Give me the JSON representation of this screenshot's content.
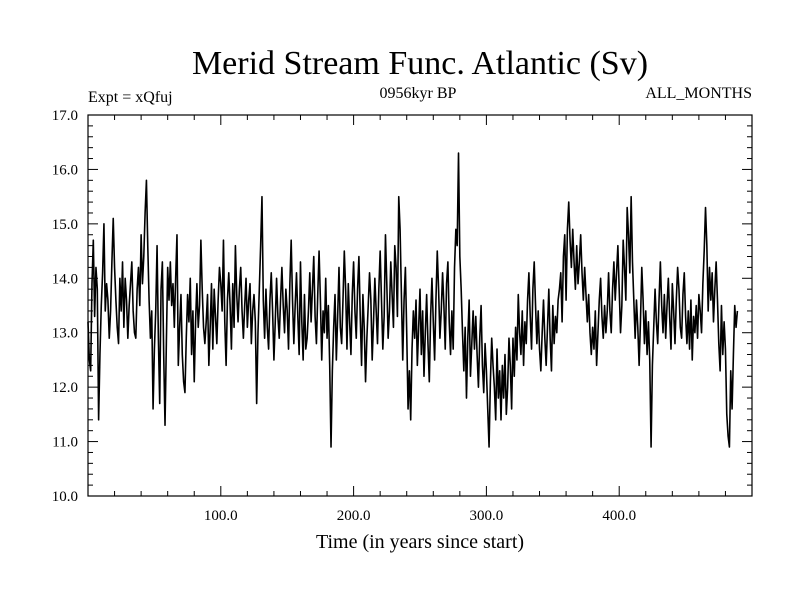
{
  "chart_data": {
    "type": "line",
    "title": "Merid Stream Func. Atlantic (Sv)",
    "subtitle_left": "Expt = xQfuj",
    "subtitle_center": "0956kyr BP",
    "subtitle_right": "ALL_MONTHS",
    "xlabel": "Time (in years since start)",
    "ylabel": "",
    "xlim": [
      0,
      500
    ],
    "ylim": [
      10.0,
      17.0
    ],
    "x_ticks": [
      100,
      200,
      300,
      400
    ],
    "x_tick_labels": [
      "100.0",
      "200.0",
      "300.0",
      "400.0"
    ],
    "y_ticks": [
      10,
      11,
      12,
      13,
      14,
      15,
      16,
      17
    ],
    "y_tick_labels": [
      "10.0",
      "11.0",
      "12.0",
      "13.0",
      "14.0",
      "15.0",
      "16.0",
      "17.0"
    ],
    "series": [
      {
        "name": "Merid Stream Func. Atlantic",
        "x_start": 0,
        "x_step": 1,
        "values": [
          13.2,
          12.5,
          12.3,
          13.9,
          14.7,
          13.3,
          14.2,
          13.8,
          11.4,
          12.6,
          13.5,
          14.1,
          15.0,
          13.4,
          13.9,
          13.6,
          12.9,
          13.4,
          14.3,
          15.1,
          14.2,
          13.6,
          13.1,
          12.8,
          14.0,
          13.4,
          14.3,
          13.1,
          14.0,
          13.6,
          12.9,
          13.5,
          13.9,
          14.3,
          13.4,
          13.0,
          12.9,
          13.8,
          14.2,
          13.5,
          14.8,
          13.9,
          14.4,
          15.2,
          15.8,
          14.6,
          13.6,
          12.9,
          13.4,
          11.6,
          12.7,
          13.4,
          14.6,
          12.9,
          11.7,
          13.8,
          14.3,
          12.6,
          11.3,
          12.8,
          14.2,
          13.6,
          14.3,
          13.5,
          13.9,
          13.1,
          14.0,
          14.8,
          12.4,
          13.1,
          13.7,
          12.6,
          12.1,
          11.9,
          12.9,
          13.7,
          13.2,
          14.0,
          12.6,
          13.4,
          12.1,
          13.2,
          13.9,
          13.1,
          13.5,
          14.7,
          13.8,
          13.1,
          12.8,
          13.2,
          13.7,
          12.4,
          13.1,
          13.9,
          12.7,
          13.8,
          13.3,
          12.8,
          13.6,
          14.2,
          13.9,
          13.4,
          14.7,
          13.2,
          12.4,
          13.6,
          14.1,
          13.5,
          12.7,
          13.9,
          13.1,
          14.6,
          13.7,
          13.2,
          13.8,
          14.2,
          13.4,
          12.9,
          13.5,
          14.0,
          13.1,
          13.6,
          13.9,
          12.8,
          13.4,
          13.7,
          13.2,
          11.7,
          13.0,
          13.8,
          14.6,
          15.5,
          13.6,
          12.9,
          13.8,
          13.1,
          12.7,
          13.6,
          14.1,
          13.4,
          12.5,
          13.2,
          14.0,
          13.3,
          12.9,
          13.6,
          14.2,
          13.5,
          13.0,
          13.8,
          13.4,
          12.7,
          13.9,
          14.7,
          13.6,
          12.8,
          13.5,
          14.1,
          13.3,
          12.6,
          14.3,
          13.2,
          12.5,
          13.7,
          12.7,
          12.9,
          13.4,
          14.1,
          13.2,
          13.8,
          14.4,
          13.3,
          12.8,
          13.7,
          14.5,
          13.6,
          12.5,
          13.4,
          13.0,
          14.0,
          12.9,
          13.5,
          12.4,
          10.9,
          12.3,
          13.1,
          13.7,
          12.5,
          13.3,
          14.2,
          13.1,
          12.8,
          13.6,
          14.5,
          13.8,
          12.7,
          13.9,
          13.2,
          12.6,
          13.7,
          14.3,
          13.4,
          12.9,
          13.8,
          14.4,
          13.3,
          12.4,
          13.7,
          13.1,
          12.1,
          12.9,
          13.5,
          14.1,
          13.6,
          12.5,
          13.2,
          14.0,
          13.4,
          12.8,
          13.8,
          14.5,
          13.6,
          12.7,
          13.3,
          14.8,
          13.9,
          12.9,
          13.4,
          14.3,
          13.7,
          13.1,
          14.6,
          14.2,
          13.3,
          15.5,
          14.9,
          13.7,
          12.5,
          13.6,
          14.2,
          13.0,
          11.6,
          12.3,
          11.4,
          12.7,
          13.4,
          12.9,
          13.6,
          12.4,
          13.1,
          13.8,
          12.6,
          13.4,
          12.2,
          13.0,
          13.7,
          12.8,
          12.1,
          13.3,
          14.0,
          13.2,
          12.5,
          13.6,
          14.5,
          13.8,
          12.9,
          13.4,
          14.1,
          13.5,
          12.7,
          13.9,
          14.3,
          13.2,
          12.6,
          13.4,
          12.7,
          14.2,
          14.9,
          14.6,
          16.3,
          14.4,
          13.8,
          13.0,
          12.3,
          13.1,
          11.8,
          12.9,
          13.6,
          12.2,
          12.8,
          13.4,
          12.7,
          13.3,
          12.6,
          12.0,
          12.9,
          13.5,
          12.4,
          11.9,
          12.8,
          12.3,
          11.6,
          10.9,
          12.1,
          12.9,
          12.4,
          12.0,
          11.4,
          12.7,
          11.8,
          12.3,
          11.4,
          12.4,
          11.8,
          12.6,
          11.5,
          12.0,
          12.9,
          12.4,
          11.6,
          12.9,
          12.2,
          13.1,
          12.5,
          13.7,
          13.0,
          12.6,
          13.4,
          12.4,
          13.2,
          12.8,
          13.6,
          14.1,
          13.3,
          12.7,
          13.8,
          14.3,
          13.5,
          12.8,
          13.4,
          12.7,
          12.3,
          13.0,
          13.6,
          12.9,
          12.4,
          13.1,
          13.8,
          12.9,
          12.3,
          13.5,
          12.8,
          13.3,
          13.0,
          13.6,
          13.8,
          14.1,
          13.2,
          14.4,
          14.8,
          13.6,
          14.9,
          15.4,
          14.7,
          14.2,
          14.9,
          14.3,
          13.8,
          14.6,
          13.9,
          14.3,
          14.8,
          14.1,
          13.6,
          14.2,
          13.7,
          13.2,
          13.7,
          13.0,
          12.6,
          13.1,
          12.7,
          13.4,
          12.4,
          13.0,
          13.6,
          14.0,
          13.3,
          12.9,
          13.5,
          13.0,
          13.4,
          14.1,
          13.4,
          13.0,
          13.8,
          14.3,
          13.6,
          14.1,
          14.6,
          13.8,
          13.0,
          13.5,
          14.7,
          14.2,
          13.6,
          15.3,
          14.8,
          14.1,
          15.5,
          14.3,
          13.6,
          12.9,
          13.6,
          13.1,
          12.4,
          13.2,
          14.2,
          13.6,
          12.8,
          13.4,
          12.6,
          13.2,
          12.5,
          10.9,
          12.4,
          13.1,
          13.8,
          13.2,
          12.8,
          13.6,
          14.3,
          13.5,
          13.0,
          13.7,
          12.9,
          13.5,
          14.0,
          13.3,
          12.7,
          13.9,
          13.4,
          12.8,
          13.6,
          14.2,
          13.8,
          13.1,
          12.9,
          13.7,
          14.1,
          13.3,
          12.8,
          13.4,
          12.7,
          13.6,
          12.5,
          13.3,
          13.0,
          13.5,
          12.9,
          13.7,
          13.4,
          13.0,
          13.9,
          14.5,
          15.3,
          14.6,
          13.4,
          14.2,
          13.6,
          14.1,
          13.2,
          13.8,
          14.3,
          13.6,
          12.8,
          12.3,
          13.5,
          12.6,
          13.2,
          12.7,
          11.5,
          11.1,
          10.9,
          12.3,
          11.6,
          12.6,
          13.5,
          13.1,
          13.4
        ]
      }
    ]
  }
}
